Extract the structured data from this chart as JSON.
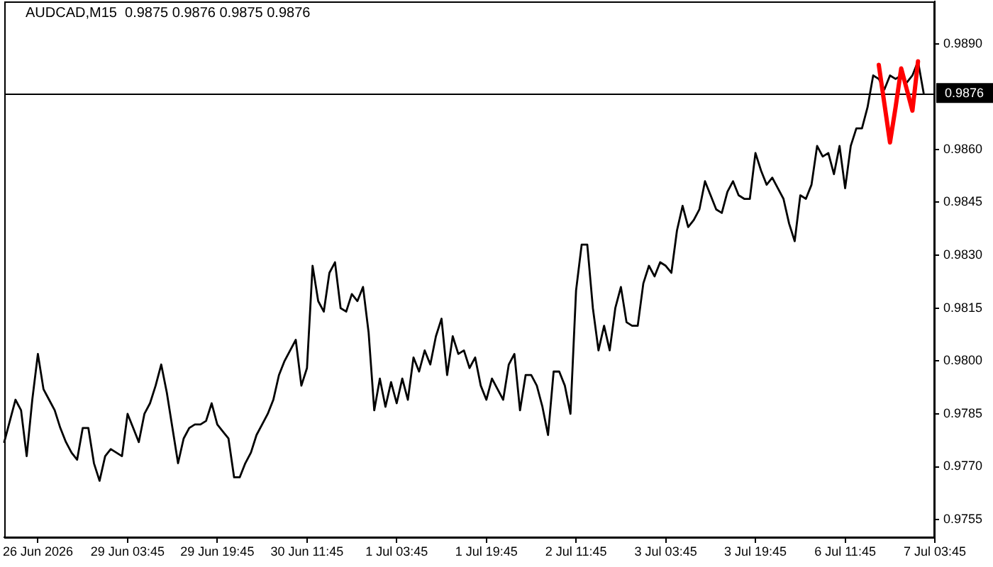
{
  "chart_data": {
    "type": "line",
    "title": "AUDCAD,M15  0.9875 0.9876 0.9875 0.9876",
    "categories": [
      null,
      null,
      null,
      null,
      null,
      null,
      "26 Jun 2026",
      null,
      null,
      null,
      null,
      null,
      null,
      null,
      null,
      null,
      null,
      null,
      null,
      null,
      null,
      null,
      "29 Jun 03:45",
      null,
      null,
      null,
      null,
      null,
      null,
      null,
      null,
      null,
      null,
      null,
      null,
      null,
      null,
      null,
      "29 Jun 19:45",
      null,
      null,
      null,
      null,
      null,
      null,
      null,
      null,
      null,
      null,
      null,
      null,
      null,
      null,
      null,
      "30 Jun 11:45",
      null,
      null,
      null,
      null,
      null,
      null,
      null,
      null,
      null,
      null,
      null,
      null,
      null,
      null,
      null,
      "1 Jul 03:45",
      null,
      null,
      null,
      null,
      null,
      null,
      null,
      null,
      null,
      null,
      null,
      null,
      null,
      null,
      null,
      "1 Jul 19:45",
      null,
      null,
      null,
      null,
      null,
      null,
      null,
      null,
      null,
      null,
      null,
      null,
      null,
      null,
      null,
      "2 Jul 11:45",
      null,
      null,
      null,
      null,
      null,
      null,
      null,
      null,
      null,
      null,
      null,
      null,
      null,
      null,
      null,
      "3 Jul 03:45",
      null,
      null,
      null,
      null,
      null,
      null,
      null,
      null,
      null,
      null,
      null,
      null,
      null,
      null,
      null,
      "3 Jul 19:45",
      null,
      null,
      null,
      null,
      null,
      null,
      null,
      null,
      null,
      null,
      null,
      null,
      null,
      null,
      null,
      "6 Jul 11:45",
      null,
      null,
      null,
      null,
      null,
      null,
      null,
      null,
      null,
      null,
      null,
      null,
      null,
      null,
      null,
      "7 Jul 03:45"
    ],
    "series": [
      {
        "color": "#000000",
        "values": [
          0.9777,
          0.9783,
          0.9789,
          0.9786,
          0.9773,
          0.9789,
          0.9802,
          0.9792,
          0.9789,
          0.9786,
          0.9781,
          0.9777,
          0.9774,
          0.9772,
          0.9781,
          0.9781,
          0.9771,
          0.9766,
          0.9773,
          0.9775,
          0.9774,
          0.9773,
          0.9785,
          0.9781,
          0.9777,
          0.9785,
          0.9788,
          0.9793,
          0.9799,
          0.9791,
          0.9781,
          0.9771,
          0.9778,
          0.9781,
          0.9782,
          0.9782,
          0.9783,
          0.9788,
          0.9782,
          0.978,
          0.9778,
          0.9767,
          0.9767,
          0.9771,
          0.9774,
          0.9779,
          0.9782,
          0.9785,
          0.9789,
          0.9796,
          0.98,
          0.9803,
          0.9806,
          0.9793,
          0.9798,
          0.9827,
          0.9817,
          0.9814,
          0.9825,
          0.9828,
          0.9815,
          0.9814,
          0.9819,
          0.9817,
          0.9821,
          0.9808,
          0.9786,
          0.9795,
          0.9787,
          0.9794,
          0.9788,
          0.9795,
          0.9789,
          0.9801,
          0.9797,
          0.9803,
          0.9799,
          0.9807,
          0.9812,
          0.9796,
          0.9807,
          0.9802,
          0.9803,
          0.9798,
          0.9801,
          0.9793,
          0.9789,
          0.9795,
          0.9792,
          0.9789,
          0.9799,
          0.9802,
          0.9786,
          0.9796,
          0.9796,
          0.9793,
          0.9787,
          0.9779,
          0.9797,
          0.9797,
          0.9793,
          0.9785,
          0.982,
          0.9833,
          0.9833,
          0.9815,
          0.9803,
          0.981,
          0.9803,
          0.9815,
          0.9821,
          0.9811,
          0.981,
          0.981,
          0.9822,
          0.9827,
          0.9824,
          0.9828,
          0.9827,
          0.9825,
          0.9837,
          0.9844,
          0.9838,
          0.984,
          0.9843,
          0.9851,
          0.9847,
          0.9843,
          0.9842,
          0.9848,
          0.9851,
          0.9847,
          0.9846,
          0.9846,
          0.9859,
          0.9854,
          0.985,
          0.9852,
          0.9849,
          0.9846,
          0.9839,
          0.9834,
          0.9847,
          0.9846,
          0.985,
          0.9861,
          0.9858,
          0.9859,
          0.9853,
          0.9861,
          0.9849,
          0.9861,
          0.9866,
          0.9866,
          0.9872,
          0.9881,
          0.988,
          0.9877,
          0.9881,
          0.988,
          0.9881,
          0.9879,
          0.9881,
          0.9885,
          0.9876,
          null,
          null
        ]
      },
      {
        "color": "#ff0000",
        "values": [
          null,
          null,
          null,
          null,
          null,
          null,
          null,
          null,
          null,
          null,
          null,
          null,
          null,
          null,
          null,
          null,
          null,
          null,
          null,
          null,
          null,
          null,
          null,
          null,
          null,
          null,
          null,
          null,
          null,
          null,
          null,
          null,
          null,
          null,
          null,
          null,
          null,
          null,
          null,
          null,
          null,
          null,
          null,
          null,
          null,
          null,
          null,
          null,
          null,
          null,
          null,
          null,
          null,
          null,
          null,
          null,
          null,
          null,
          null,
          null,
          null,
          null,
          null,
          null,
          null,
          null,
          null,
          null,
          null,
          null,
          null,
          null,
          null,
          null,
          null,
          null,
          null,
          null,
          null,
          null,
          null,
          null,
          null,
          null,
          null,
          null,
          null,
          null,
          null,
          null,
          null,
          null,
          null,
          null,
          null,
          null,
          null,
          null,
          null,
          null,
          null,
          null,
          null,
          null,
          null,
          null,
          null,
          null,
          null,
          null,
          null,
          null,
          null,
          null,
          null,
          null,
          null,
          null,
          null,
          null,
          null,
          null,
          null,
          null,
          null,
          null,
          null,
          null,
          null,
          null,
          null,
          null,
          null,
          null,
          null,
          null,
          null,
          null,
          null,
          null,
          null,
          null,
          null,
          null,
          null,
          null,
          null,
          null,
          null,
          null,
          null,
          null,
          null,
          null,
          null,
          null,
          0.9884,
          0.9873,
          0.9862,
          0.9872,
          0.9883,
          0.9877,
          0.9871,
          0.9885,
          null,
          null,
          null
        ]
      }
    ],
    "ylim": [
      0.975,
      0.9902
    ],
    "yticks": [
      {
        "value": 0.9755,
        "label": "0.9755"
      },
      {
        "value": 0.977,
        "label": "0.9770"
      },
      {
        "value": 0.9785,
        "label": "0.9785"
      },
      {
        "value": 0.98,
        "label": "0.9800"
      },
      {
        "value": 0.9815,
        "label": "0.9815"
      },
      {
        "value": 0.983,
        "label": "0.9830"
      },
      {
        "value": 0.9845,
        "label": "0.9845"
      },
      {
        "value": 0.986,
        "label": "0.9860"
      },
      {
        "value": 0.989,
        "label": "0.9890"
      }
    ],
    "ref_lines": [
      {
        "axis": "y",
        "value": 0.9876,
        "label": "0.9876",
        "color": "#000000"
      }
    ],
    "grid": false,
    "legend": false,
    "marker": "none",
    "line_style": "solid"
  }
}
